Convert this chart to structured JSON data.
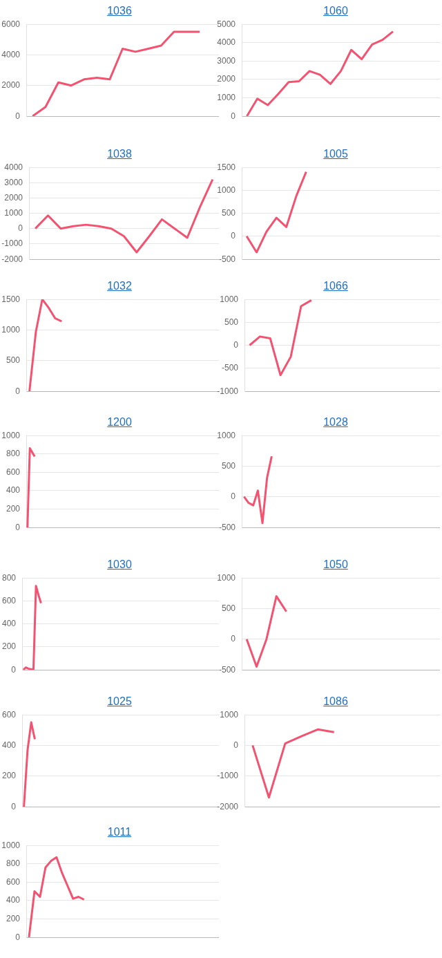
{
  "chart_data": [
    {
      "type": "line",
      "title": "1036",
      "categories": [
        null,
        null,
        null,
        null,
        null,
        null,
        null,
        null,
        null,
        null,
        null,
        null,
        null,
        null,
        null
      ],
      "values": [
        0,
        600,
        2200,
        2000,
        2400,
        2500,
        2400,
        4400,
        4200,
        4400,
        4600,
        5500,
        5500,
        5500,
        null
      ],
      "color": "#f35370",
      "ylim": [
        0,
        6000
      ],
      "yticks": [
        0,
        2000,
        4000,
        6000
      ],
      "grid": "y",
      "marker": "none",
      "tick_labels": "y"
    },
    {
      "type": "line",
      "title": "1060",
      "categories": [
        null,
        null,
        null,
        null,
        null,
        null,
        null,
        null,
        null,
        null,
        null,
        null,
        null,
        null,
        null,
        null,
        null,
        null,
        null
      ],
      "values": [
        0,
        950,
        600,
        1200,
        1850,
        1900,
        2450,
        2250,
        1750,
        2450,
        3600,
        3100,
        3900,
        4150,
        4600,
        null,
        null,
        null,
        null
      ],
      "color": "#f35370",
      "ylim": [
        0,
        5000
      ],
      "yticks": [
        0,
        1000,
        2000,
        3000,
        4000,
        5000
      ],
      "grid": "y",
      "marker": "none",
      "tick_labels": "y"
    },
    {
      "type": "line",
      "title": "1038",
      "categories": [
        null,
        null,
        null,
        null,
        null,
        null,
        null,
        null,
        null,
        null,
        null,
        null,
        null,
        null,
        null
      ],
      "values": [
        0,
        850,
        0,
        150,
        250,
        150,
        0,
        -500,
        -1550,
        -500,
        600,
        0,
        -600,
        1400,
        3200
      ],
      "color": "#f35370",
      "ylim": [
        -2000,
        4000
      ],
      "yticks": [
        -2000,
        -1000,
        0,
        1000,
        2000,
        3000,
        4000
      ],
      "grid": "y",
      "marker": "none",
      "tick_labels": "y"
    },
    {
      "type": "line",
      "title": "1005",
      "categories": [
        null,
        null,
        null,
        null,
        null,
        null,
        null,
        null,
        null,
        null,
        null,
        null,
        null,
        null,
        null,
        null,
        null,
        null,
        null,
        null
      ],
      "values": [
        0,
        -350,
        100,
        400,
        200,
        870,
        1400,
        null,
        null,
        null,
        null,
        null,
        null,
        null,
        null,
        null,
        null,
        null,
        null,
        null
      ],
      "color": "#f35370",
      "ylim": [
        -500,
        1500
      ],
      "yticks": [
        -500,
        0,
        500,
        1000,
        1500
      ],
      "grid": "y",
      "marker": "none",
      "tick_labels": "y"
    },
    {
      "type": "line",
      "title": "1032",
      "categories": [
        null,
        null,
        null,
        null,
        null,
        null,
        null,
        null,
        null,
        null,
        null,
        null,
        null,
        null,
        null,
        null,
        null,
        null,
        null,
        null,
        null,
        null,
        null,
        null,
        null,
        null,
        null,
        null,
        null,
        null
      ],
      "values": [
        0,
        970,
        1500,
        1360,
        1190,
        1140,
        null,
        null,
        null,
        null,
        null,
        null,
        null,
        null,
        null,
        null,
        null,
        null,
        null,
        null,
        null,
        null,
        null,
        null,
        null,
        null,
        null,
        null,
        null,
        null
      ],
      "color": "#f35370",
      "ylim": [
        0,
        1500
      ],
      "yticks": [
        0,
        500,
        1000,
        1500
      ],
      "grid": "y",
      "marker": "none",
      "tick_labels": "y"
    },
    {
      "type": "line",
      "title": "1066",
      "categories": [
        null,
        null,
        null,
        null,
        null,
        null,
        null,
        null,
        null,
        null,
        null,
        null,
        null,
        null,
        null,
        null,
        null,
        null,
        null
      ],
      "values": [
        0,
        190,
        150,
        -650,
        -250,
        850,
        980,
        null,
        null,
        null,
        null,
        null,
        null,
        null,
        null,
        null,
        null,
        null,
        null
      ],
      "color": "#f35370",
      "ylim": [
        -1000,
        1000
      ],
      "yticks": [
        -1000,
        -500,
        0,
        500,
        1000
      ],
      "grid": "y",
      "marker": "none",
      "tick_labels": "y"
    },
    {
      "type": "line",
      "title": "1200",
      "categories": [
        null,
        null,
        null,
        null,
        null,
        null,
        null,
        null,
        null,
        null,
        null,
        null,
        null,
        null,
        null,
        null,
        null,
        null,
        null,
        null,
        null,
        null,
        null,
        null,
        null,
        null,
        null,
        null,
        null,
        null,
        null,
        null,
        null,
        null,
        null,
        null,
        null,
        null,
        null,
        null,
        null,
        null,
        null,
        null,
        null,
        null,
        null,
        null,
        null,
        null,
        null,
        null,
        null,
        null,
        null,
        null,
        null,
        null,
        null,
        null,
        null,
        null,
        null,
        null,
        null,
        null,
        null,
        null,
        null,
        null,
        null,
        null,
        null,
        null,
        null,
        null,
        null,
        null,
        null,
        null
      ],
      "values": [
        0,
        860,
        815,
        770,
        null,
        null,
        null,
        null,
        null,
        null,
        null,
        null,
        null,
        null,
        null,
        null,
        null,
        null,
        null,
        null,
        null,
        null,
        null,
        null,
        null,
        null,
        null,
        null,
        null,
        null,
        null,
        null,
        null,
        null,
        null,
        null,
        null,
        null,
        null,
        null,
        null,
        null,
        null,
        null,
        null,
        null,
        null,
        null,
        null,
        null,
        null,
        null,
        null,
        null,
        null,
        null,
        null,
        null,
        null,
        null,
        null,
        null,
        null,
        null,
        null,
        null,
        null,
        null,
        null,
        null,
        null,
        null,
        null,
        null,
        null,
        null,
        null,
        null,
        null,
        null
      ],
      "color": "#f35370",
      "ylim": [
        0,
        1000
      ],
      "yticks": [
        0,
        200,
        400,
        600,
        800,
        1000
      ],
      "grid": "y",
      "marker": "none",
      "tick_labels": "y"
    },
    {
      "type": "line",
      "title": "1028",
      "categories": [
        null,
        null,
        null,
        null,
        null,
        null,
        null,
        null,
        null,
        null,
        null,
        null,
        null,
        null,
        null,
        null,
        null,
        null,
        null,
        null,
        null,
        null,
        null,
        null,
        null,
        null,
        null,
        null,
        null,
        null,
        null,
        null,
        null,
        null,
        null,
        null,
        null,
        null,
        null,
        null,
        null,
        null,
        null
      ],
      "values": [
        0,
        -100,
        -140,
        100,
        -430,
        310,
        660,
        null,
        null,
        null,
        null,
        null,
        null,
        null,
        null,
        null,
        null,
        null,
        null,
        null,
        null,
        null,
        null,
        null,
        null,
        null,
        null,
        null,
        null,
        null,
        null,
        null,
        null,
        null,
        null,
        null,
        null,
        null,
        null,
        null,
        null,
        null,
        null
      ],
      "color": "#f35370",
      "ylim": [
        -500,
        1000
      ],
      "yticks": [
        -500,
        0,
        500,
        1000
      ],
      "grid": "y",
      "marker": "none",
      "tick_labels": "y"
    },
    {
      "type": "line",
      "title": "1030",
      "categories": [
        null,
        null,
        null,
        null,
        null,
        null,
        null,
        null,
        null,
        null,
        null,
        null,
        null,
        null,
        null,
        null,
        null,
        null,
        null,
        null,
        null,
        null,
        null,
        null,
        null,
        null,
        null,
        null,
        null,
        null,
        null,
        null,
        null,
        null,
        null,
        null,
        null,
        null,
        null,
        null,
        null,
        null,
        null,
        null,
        null,
        null,
        null,
        null,
        null,
        null,
        null,
        null,
        null,
        null,
        null,
        null,
        null,
        null,
        null,
        null,
        null,
        null,
        null,
        null,
        null,
        null,
        null,
        null,
        null,
        null,
        null,
        null,
        null,
        null,
        null,
        null,
        null,
        null
      ],
      "values": [
        0,
        20,
        10,
        5,
        0,
        730,
        650,
        580,
        null,
        null,
        null,
        null,
        null,
        null,
        null,
        null,
        null,
        null,
        null,
        null,
        null,
        null,
        null,
        null,
        null,
        null,
        null,
        null,
        null,
        null,
        null,
        null,
        null,
        null,
        null,
        null,
        null,
        null,
        null,
        null,
        null,
        null,
        null,
        null,
        null,
        null,
        null,
        null,
        null,
        null,
        null,
        null,
        null,
        null,
        null,
        null,
        null,
        null,
        null,
        null,
        null,
        null,
        null,
        null,
        null,
        null,
        null,
        null,
        null,
        null,
        null,
        null,
        null,
        null,
        null,
        null,
        null,
        null
      ],
      "color": "#f35370",
      "ylim": [
        0,
        800
      ],
      "yticks": [
        0,
        200,
        400,
        600,
        800
      ],
      "grid": "y",
      "marker": "none",
      "tick_labels": "y"
    },
    {
      "type": "line",
      "title": "1050",
      "categories": [
        null,
        null,
        null,
        null,
        null,
        null,
        null,
        null,
        null,
        null,
        null,
        null,
        null,
        null,
        null,
        null,
        null,
        null,
        null,
        null
      ],
      "values": [
        0,
        -450,
        0,
        700,
        450,
        null,
        null,
        null,
        null,
        null,
        null,
        null,
        null,
        null,
        null,
        null,
        null,
        null,
        null,
        null
      ],
      "color": "#f35370",
      "ylim": [
        -500,
        1000
      ],
      "yticks": [
        -500,
        0,
        500,
        1000
      ],
      "grid": "y",
      "marker": "none",
      "tick_labels": "y"
    },
    {
      "type": "line",
      "title": "1025",
      "categories": [
        null,
        null,
        null,
        null,
        null,
        null,
        null,
        null,
        null,
        null,
        null,
        null,
        null,
        null,
        null,
        null,
        null,
        null,
        null,
        null,
        null,
        null,
        null,
        null,
        null,
        null,
        null,
        null,
        null,
        null,
        null,
        null,
        null,
        null,
        null,
        null,
        null,
        null,
        null,
        null,
        null,
        null,
        null,
        null,
        null,
        null,
        null,
        null,
        null,
        null,
        null,
        null,
        null,
        null
      ],
      "values": [
        0,
        370,
        550,
        440,
        null,
        null,
        null,
        null,
        null,
        null,
        null,
        null,
        null,
        null,
        null,
        null,
        null,
        null,
        null,
        null,
        null,
        null,
        null,
        null,
        null,
        null,
        null,
        null,
        null,
        null,
        null,
        null,
        null,
        null,
        null,
        null,
        null,
        null,
        null,
        null,
        null,
        null,
        null,
        null,
        null,
        null,
        null,
        null,
        null,
        null,
        null,
        null,
        null,
        null
      ],
      "color": "#f35370",
      "ylim": [
        0,
        600
      ],
      "yticks": [
        0,
        200,
        400,
        600
      ],
      "grid": "y",
      "marker": "none",
      "tick_labels": "y"
    },
    {
      "type": "line",
      "title": "1086",
      "categories": [
        null,
        null,
        null,
        null,
        null,
        null,
        null,
        null,
        null,
        null,
        null,
        null
      ],
      "values": [
        0,
        -1700,
        60,
        300,
        520,
        430,
        null,
        null,
        null,
        null,
        null,
        null
      ],
      "color": "#f35370",
      "ylim": [
        -2000,
        1000
      ],
      "yticks": [
        -2000,
        -1000,
        0,
        1000
      ],
      "grid": "y",
      "marker": "none",
      "tick_labels": "y"
    },
    {
      "type": "line",
      "title": "1011",
      "categories": [
        null,
        null,
        null,
        null,
        null,
        null,
        null,
        null,
        null,
        null,
        null,
        null,
        null,
        null,
        null,
        null,
        null,
        null,
        null,
        null,
        null,
        null,
        null,
        null,
        null,
        null,
        null,
        null,
        null,
        null,
        null,
        null,
        null,
        null,
        null
      ],
      "values": [
        0,
        500,
        440,
        760,
        830,
        870,
        700,
        560,
        420,
        440,
        410,
        null,
        null,
        null,
        null,
        null,
        null,
        null,
        null,
        null,
        null,
        null,
        null,
        null,
        null,
        null,
        null,
        null,
        null,
        null,
        null,
        null,
        null,
        null,
        null
      ],
      "color": "#f35370",
      "ylim": [
        0,
        1000
      ],
      "yticks": [
        0,
        200,
        400,
        600,
        800,
        1000
      ],
      "grid": "y",
      "marker": "none",
      "tick_labels": "y"
    }
  ]
}
